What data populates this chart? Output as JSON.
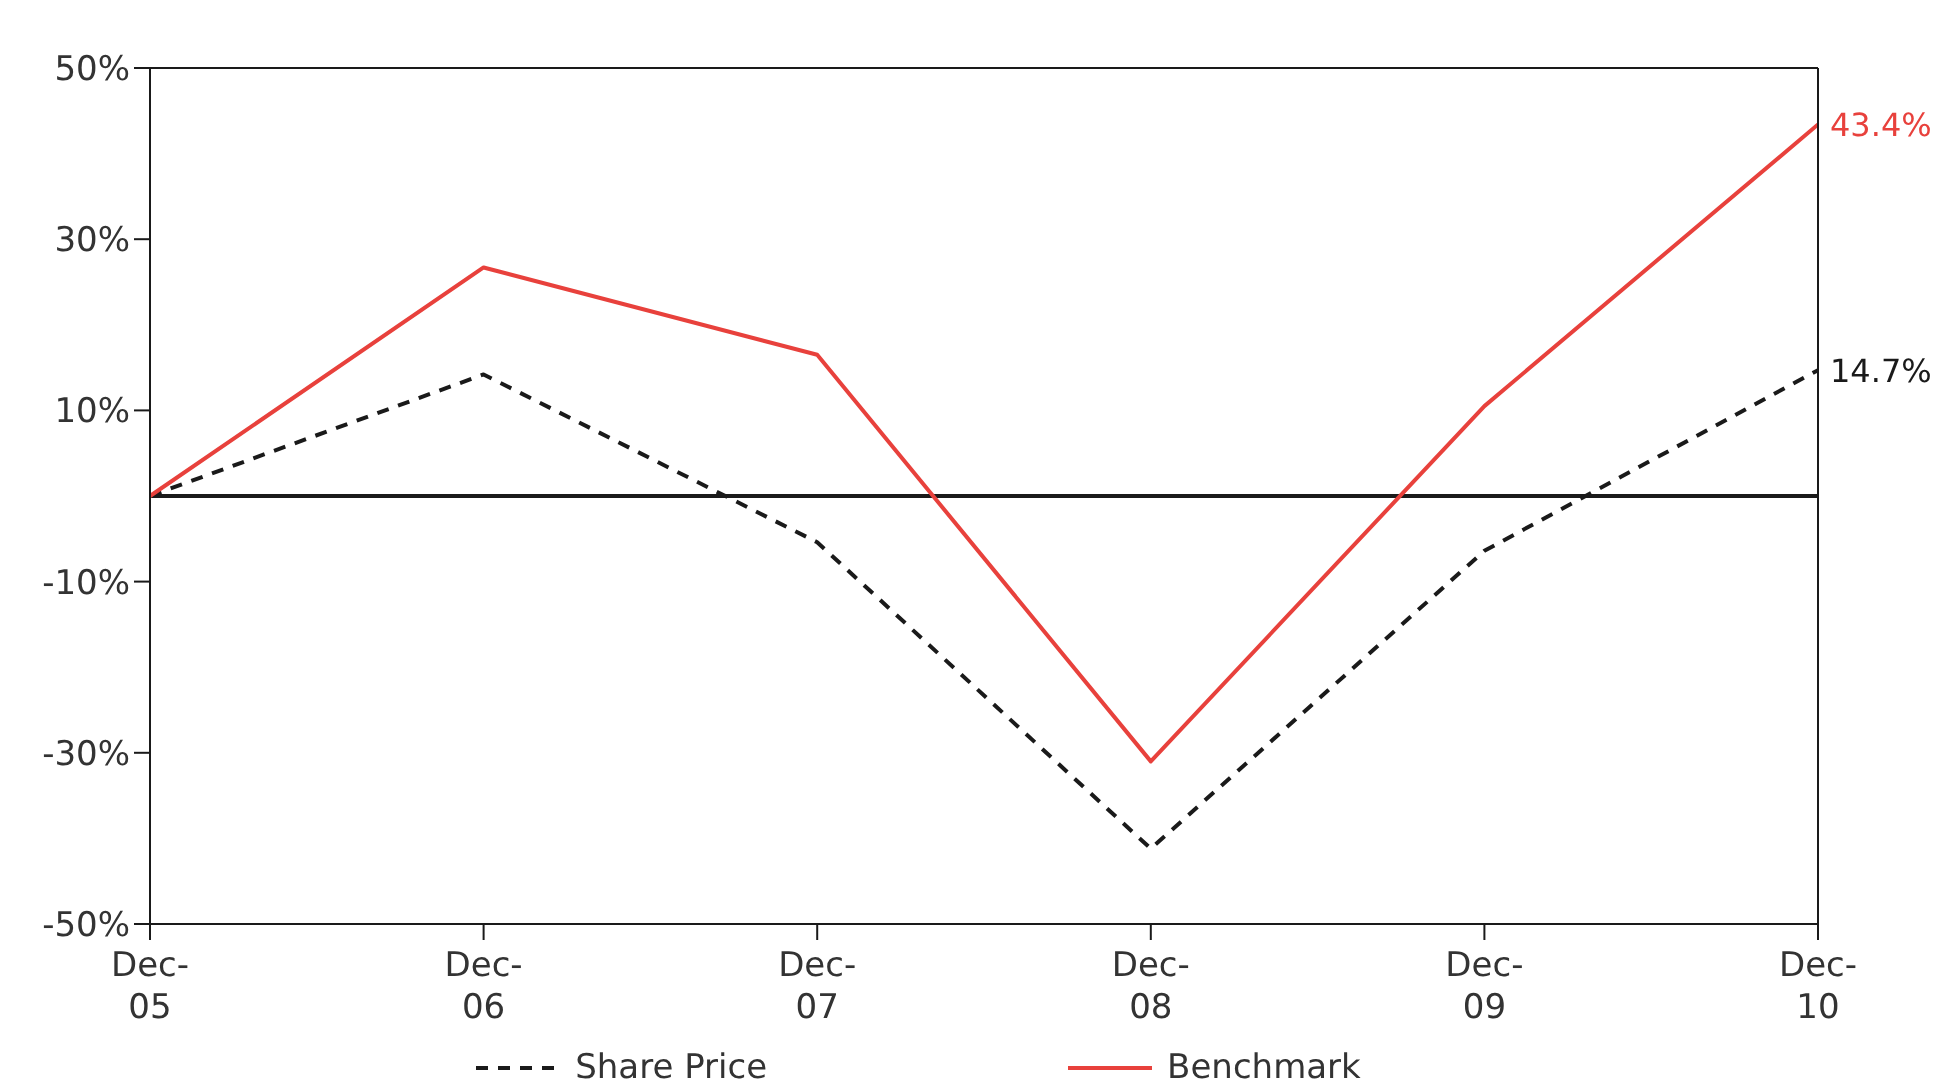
{
  "chart_data": {
    "type": "line",
    "categories": [
      "Dec-05",
      "Dec-06",
      "Dec-07",
      "Dec-08",
      "Dec-09",
      "Dec-10"
    ],
    "series": [
      {
        "name": "Share Price",
        "color": "#1a1a1a",
        "line_style": "dashed",
        "values": [
          0,
          14.2,
          -5.4,
          -41.2,
          -6.4,
          14.7
        ],
        "value_labels": [
          null,
          null,
          null,
          null,
          null,
          "14.7%"
        ]
      },
      {
        "name": "Benchmark",
        "color": "#e8413c",
        "line_style": "solid",
        "values": [
          0,
          26.7,
          16.5,
          -31,
          10.5,
          43.4
        ],
        "value_labels": [
          null,
          null,
          null,
          null,
          null,
          "43.4%"
        ]
      }
    ],
    "ylim": [
      -50,
      50
    ],
    "yticks": [
      {
        "value": -50,
        "label": "-50%"
      },
      {
        "value": -30,
        "label": "-30%"
      },
      {
        "value": -10,
        "label": "-10%"
      },
      {
        "value": 10,
        "label": "10%"
      },
      {
        "value": 30,
        "label": "30%"
      },
      {
        "value": 50,
        "label": "50%"
      }
    ],
    "ref_lines": [
      {
        "axis": "y",
        "value": 0,
        "label": null,
        "color": "#1a1a1a"
      }
    ],
    "grid": false,
    "legend": "bottom",
    "marker": "none"
  }
}
